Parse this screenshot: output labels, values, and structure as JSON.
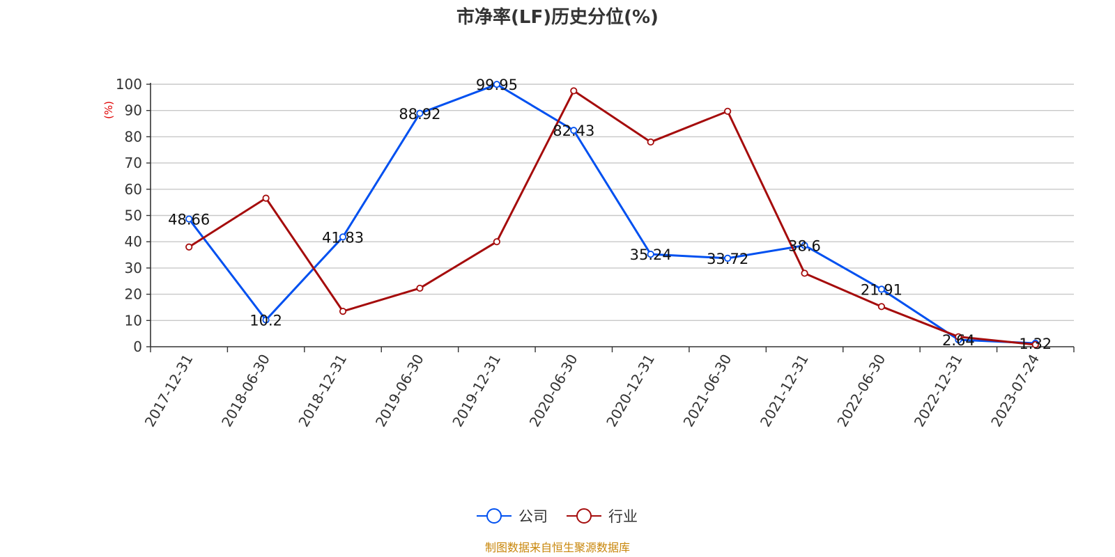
{
  "chart_data": {
    "type": "line",
    "title": "市净率(LF)历史分位(%)",
    "ylabel": "(%)",
    "ylim": [
      0,
      100
    ],
    "yticks": [
      0,
      10,
      20,
      30,
      40,
      50,
      60,
      70,
      80,
      90,
      100
    ],
    "grid": true,
    "legend_position": "bottom",
    "categories": [
      "2017-12-31",
      "2018-06-30",
      "2018-12-31",
      "2019-06-30",
      "2019-12-31",
      "2020-06-30",
      "2020-12-31",
      "2021-06-30",
      "2021-12-31",
      "2022-06-30",
      "2022-12-31",
      "2023-07-24"
    ],
    "series": [
      {
        "name": "公司",
        "color": "#0050f0",
        "values": [
          48.66,
          10.2,
          41.83,
          88.92,
          99.95,
          82.43,
          35.24,
          33.72,
          38.6,
          21.91,
          2.64,
          1.32
        ],
        "labels": [
          "48.66",
          "10.2",
          "41.83",
          "88.92",
          "99.95",
          "82.43",
          "35.24",
          "33.72",
          "38.6",
          "21.91",
          "2.64",
          "1.32"
        ]
      },
      {
        "name": "行业",
        "color": "#a50c0c",
        "values": [
          38,
          56.6,
          13.5,
          22.3,
          40,
          97.5,
          78,
          89.7,
          28,
          15.3,
          3.8,
          0.8
        ]
      }
    ],
    "source": "制图数据来自恒生聚源数据库",
    "source_color": "#c8860a",
    "ylabel_color": "#e00000"
  }
}
